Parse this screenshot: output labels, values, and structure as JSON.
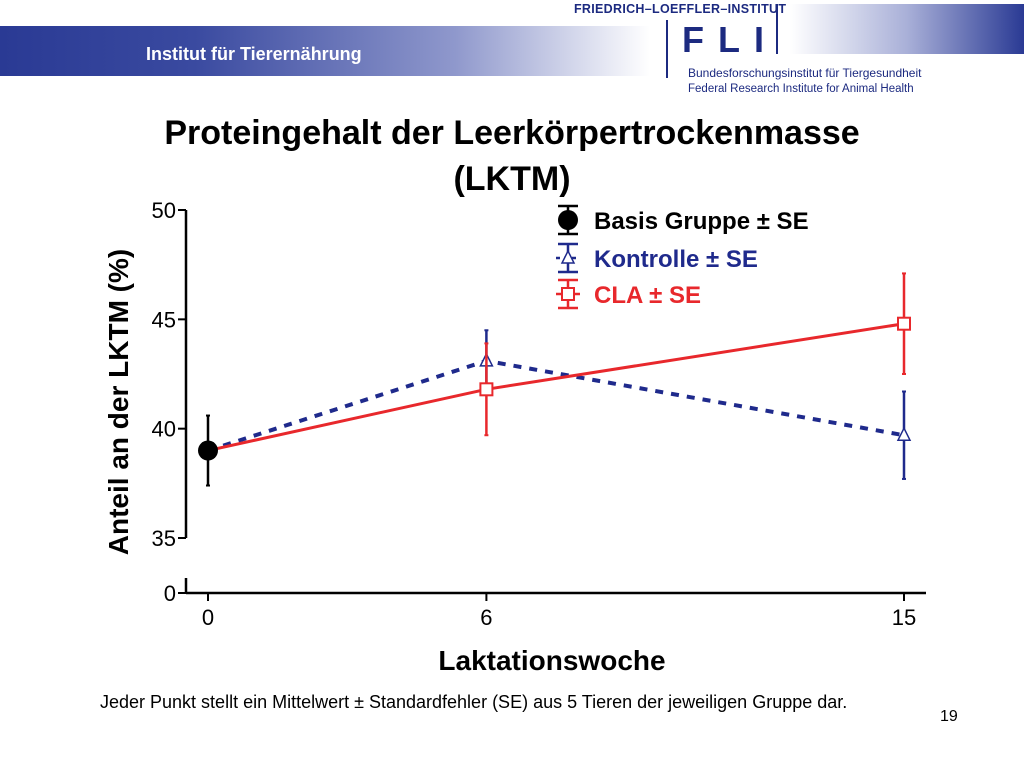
{
  "header": {
    "banner_label": "Institut für Tierernährung",
    "institute_name": "FRIEDRICH–LOEFFLER–INSTITUT",
    "logo_text": "FLI",
    "institute_sub_de": "Bundesforschungsinstitut für Tiergesundheit",
    "institute_sub_en": "Federal Research Institute for Animal Health",
    "brand_color": "#1c2a80"
  },
  "slide": {
    "title_line1": "Proteingehalt der Leerkörpertrockenmasse",
    "title_line2": "(LKTM)",
    "footnote": "Jeder Punkt stellt ein Mittelwert ± Standardfehler (SE) aus 5 Tieren der jeweiligen Gruppe dar.",
    "page_number": "19"
  },
  "chart_data": {
    "type": "line",
    "xlabel": "Laktationswoche",
    "ylabel": "Anteil an der LKTM (%)",
    "x_ticks": [
      "0",
      "6",
      "15"
    ],
    "y_ticks": [
      "35",
      "40",
      "45",
      "50"
    ],
    "y_break_tick": "0",
    "ylim": [
      35,
      50
    ],
    "y_axis_break": true,
    "grid": false,
    "legend_position": "top-right",
    "series": [
      {
        "name": "Basis Gruppe",
        "legend_label": "Basis Gruppe  ± SE",
        "color": "#000000",
        "marker": "filled-circle",
        "line": "none",
        "points": [
          {
            "x": 0,
            "y": 39.0,
            "se": 1.6
          }
        ]
      },
      {
        "name": "Kontrolle",
        "legend_label": "Kontrolle ± SE",
        "color": "#1f2a8c",
        "marker": "open-triangle",
        "line": "dotted",
        "points": [
          {
            "x": 0,
            "y": 39.0,
            "se": 0
          },
          {
            "x": 6,
            "y": 43.1,
            "se": 1.4
          },
          {
            "x": 15,
            "y": 39.7,
            "se": 2.0
          }
        ]
      },
      {
        "name": "CLA",
        "legend_label": "CLA ± SE",
        "color": "#e8282c",
        "marker": "open-square",
        "line": "solid",
        "points": [
          {
            "x": 0,
            "y": 39.0,
            "se": 0
          },
          {
            "x": 6,
            "y": 41.8,
            "se": 2.1
          },
          {
            "x": 15,
            "y": 44.8,
            "se": 2.3
          }
        ]
      }
    ]
  }
}
